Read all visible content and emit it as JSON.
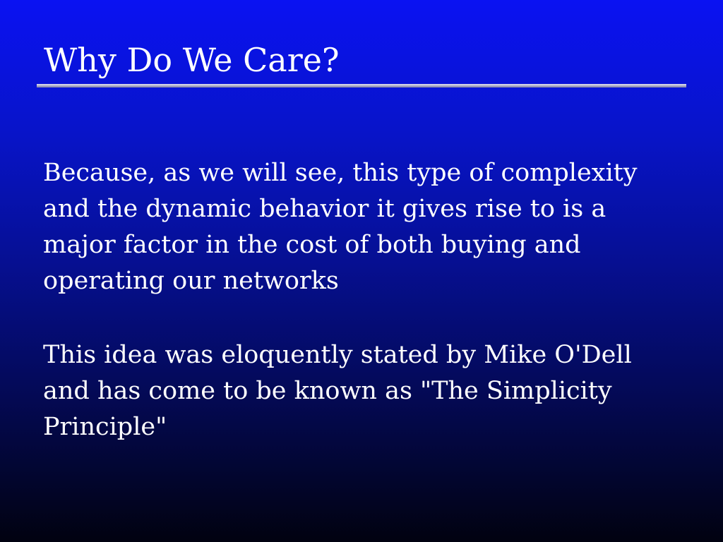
{
  "slide": {
    "title": "Why Do We Care?",
    "paragraphs": [
      "Because, as we will see, this type of complexity and the dynamic behavior it gives rise to is a major factor in the cost of both buying and operating our networks",
      "This idea was eloquently stated by Mike O'Dell and has come to be known as \"The Simplicity Principle\""
    ],
    "colors": {
      "background_top": "#0a12f2",
      "background_bottom": "#010210",
      "text": "#ffffff",
      "rule": "#a9abc7"
    }
  }
}
